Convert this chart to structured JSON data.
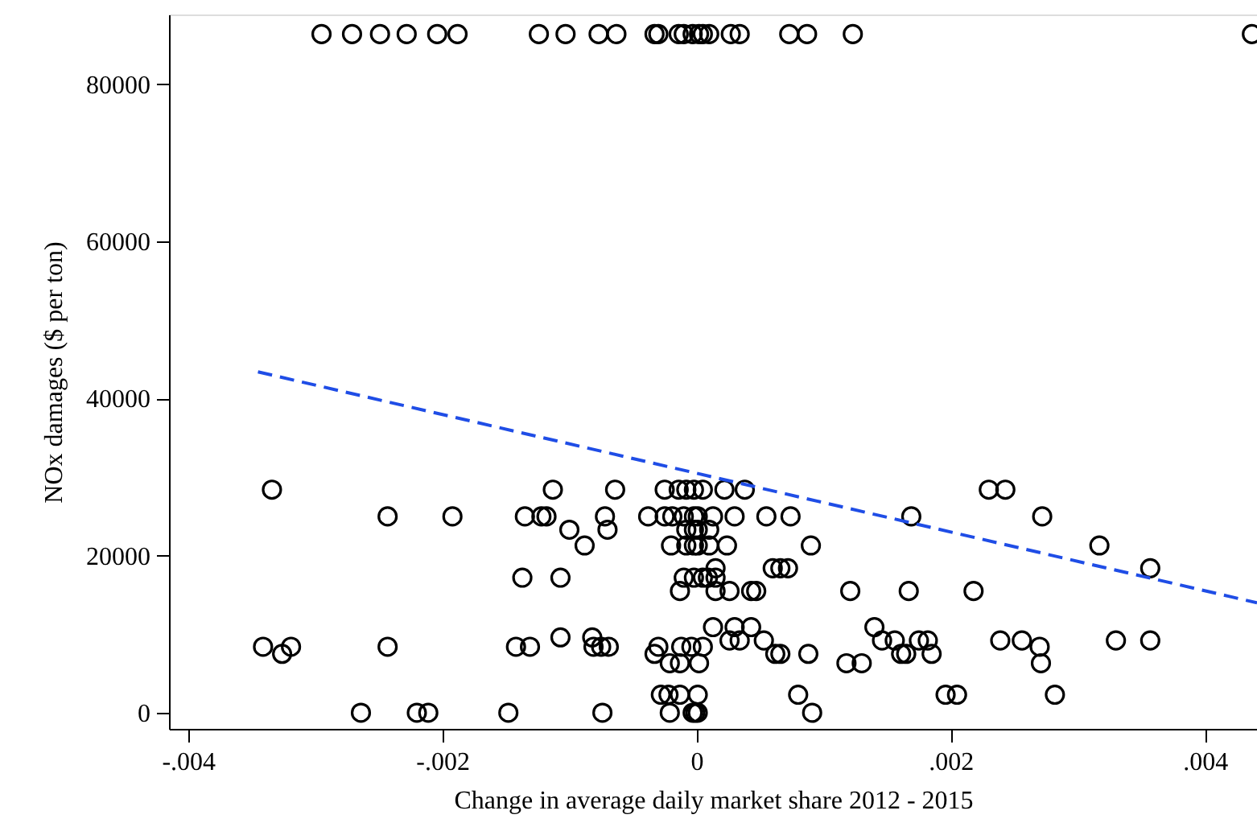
{
  "chart_data": {
    "type": "scatter",
    "xlabel": "Change in  average daily market share 2012 -  2015",
    "ylabel": "NOx damages ($ per ton)",
    "xlim": [
      -0.00415,
      0.00441
    ],
    "ylim": [
      -2050,
      88900
    ],
    "xticks": [
      {
        "value": -0.004,
        "label": "-.004"
      },
      {
        "value": -0.002,
        "label": "-.002"
      },
      {
        "value": 0,
        "label": "0"
      },
      {
        "value": 0.002,
        "label": ".002"
      },
      {
        "value": 0.004,
        "label": ".004"
      }
    ],
    "yticks": [
      0,
      20000,
      40000,
      60000,
      80000
    ],
    "grid": false,
    "marker": "circle",
    "series": [
      {
        "color": "#000000",
        "x": [
          -0.00295,
          -0.00271,
          -0.00249,
          -0.00228,
          -0.00204,
          -0.00188,
          -0.00124,
          -0.00103,
          -0.00077,
          -0.00063,
          -0.00033,
          -0.0003,
          -0.00014,
          -0.0001,
          -3e-05,
          2e-05,
          5e-05,
          0.0001,
          0.00027,
          0.00034,
          0.00073,
          0.00087,
          0.00123,
          0.00437,
          -0.00334,
          -0.00113,
          -0.00064,
          -0.00025,
          -0.00014,
          -8e-05,
          -2e-05,
          5e-05,
          0.00022,
          0.00038,
          0.0023,
          0.00243,
          -0.00243,
          -0.00192,
          -0.00135,
          -0.00122,
          -0.00118,
          -0.00072,
          -0.00038,
          -0.00025,
          -0.00019,
          -0.0001,
          -2e-05,
          1e-05,
          0.00013,
          0.0003,
          0.00055,
          0.00074,
          0.00169,
          0.00272,
          -0.001,
          -0.0007,
          -8e-05,
          -2e-05,
          1e-05,
          0.0001,
          -0.00088,
          -0.0002,
          -8e-05,
          -2e-05,
          1e-05,
          0.0001,
          0.00024,
          0.0009,
          0.00317,
          0.00015,
          0.0006,
          0.00066,
          0.00072,
          0.00357,
          -0.00137,
          -0.00107,
          -0.0001,
          -2e-05,
          5e-05,
          9e-05,
          0.00015,
          -0.00013,
          0.00015,
          0.00026,
          0.00043,
          0.00047,
          0.00121,
          0.00167,
          0.00218,
          0.00013,
          0.0003,
          0.00043,
          0.0014,
          -0.00107,
          -0.00082,
          0.00026,
          0.00034,
          0.00053,
          0.00146,
          0.00156,
          0.00175,
          0.00182,
          0.00239,
          0.00256,
          0.0027,
          0.0033,
          0.00357,
          -0.00341,
          -0.00319,
          -0.00243,
          -0.00142,
          -0.00131,
          -0.00081,
          -0.00075,
          -0.00069,
          -0.0003,
          -0.00012,
          -4e-05,
          5e-05,
          -0.00326,
          -0.00033,
          0.00062,
          0.00066,
          0.00088,
          0.00161,
          0.00165,
          0.00185,
          -0.00021,
          -0.00013,
          2e-05,
          0.00118,
          0.0013,
          0.00271,
          -0.00028,
          -0.00022,
          -0.00013,
          1e-05,
          0.0008,
          0.00196,
          0.00205,
          0.00282,
          -0.00264,
          -0.0022,
          -0.00211,
          -0.00148,
          -0.00074,
          -0.00021,
          -3e-05,
          -1e-05,
          1e-05,
          0.00091
        ],
        "values": [
          86400,
          86400,
          86400,
          86400,
          86400,
          86400,
          86400,
          86400,
          86400,
          86400,
          86400,
          86400,
          86400,
          86400,
          86400,
          86400,
          86400,
          86400,
          86400,
          86400,
          86400,
          86400,
          86400,
          86400,
          28400,
          28400,
          28400,
          28400,
          28400,
          28400,
          28400,
          28400,
          28400,
          28400,
          28400,
          28400,
          25000,
          25000,
          25000,
          25000,
          25000,
          25000,
          25000,
          25000,
          25000,
          25000,
          25000,
          25000,
          25000,
          25000,
          25000,
          25000,
          25000,
          25000,
          23300,
          23300,
          23300,
          23300,
          23300,
          23300,
          21300,
          21300,
          21300,
          21300,
          21300,
          21300,
          21300,
          21300,
          21300,
          18400,
          18400,
          18400,
          18400,
          18400,
          17200,
          17200,
          17200,
          17200,
          17200,
          17200,
          17200,
          15500,
          15500,
          15500,
          15500,
          15500,
          15500,
          15500,
          15500,
          10900,
          10900,
          10900,
          10900,
          9600,
          9600,
          9200,
          9200,
          9200,
          9200,
          9200,
          9200,
          9200,
          9200,
          9200,
          8400,
          9200,
          9200,
          8400,
          8400,
          8400,
          8400,
          8400,
          8400,
          8400,
          8400,
          8400,
          8400,
          8400,
          8400,
          7500,
          7500,
          7500,
          7500,
          7500,
          7500,
          7500,
          7500,
          6300,
          6300,
          6300,
          6300,
          6300,
          6300,
          2300,
          2300,
          2300,
          2300,
          2300,
          2300,
          2300,
          2300,
          0,
          0,
          0,
          0,
          0,
          0,
          0,
          0,
          0,
          0
        ]
      },
      {
        "type": "line",
        "color": "#1f4de6",
        "line_style": "dashed",
        "marker": "none",
        "x": [
          -0.00345,
          0.00441
        ],
        "values": [
          43400,
          14000
        ]
      }
    ]
  }
}
